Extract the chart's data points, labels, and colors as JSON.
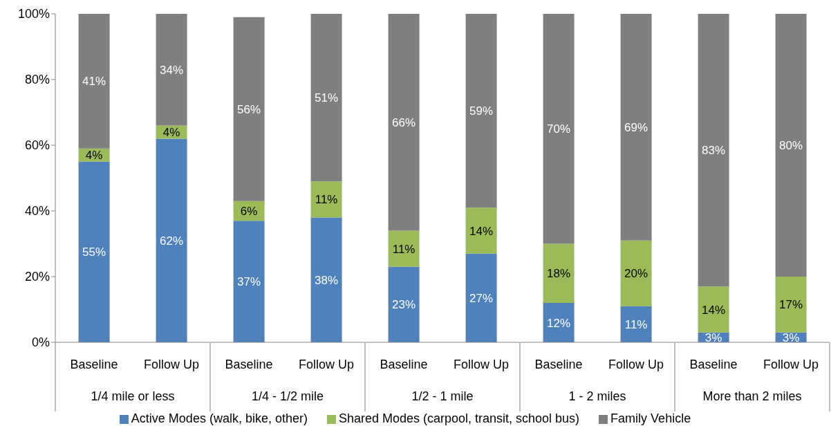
{
  "chart_data": {
    "type": "bar",
    "stacked": true,
    "categories": [
      "Baseline",
      "Follow Up",
      "Baseline",
      "Follow Up",
      "Baseline",
      "Follow Up",
      "Baseline",
      "Follow Up",
      "Baseline",
      "Follow Up"
    ],
    "annotations": [
      "1/4 mile or less",
      "1/4 - 1/2 mile",
      "1/2 - 1 mile",
      "1 - 2 miles",
      "More than 2 miles"
    ],
    "series": [
      {
        "name": "Active Modes (walk, bike, other)",
        "color": "#4f81bd",
        "values": [
          55,
          62,
          37,
          38,
          23,
          27,
          12,
          11,
          3,
          3
        ],
        "value_labels": [
          "55%",
          "62%",
          "37%",
          "38%",
          "23%",
          "27%",
          "12%",
          "11%",
          "3%",
          "3%"
        ]
      },
      {
        "name": "Shared Modes (carpool, transit, school bus)",
        "color": "#9bbb59",
        "values": [
          4,
          4,
          6,
          11,
          11,
          14,
          18,
          20,
          14,
          17
        ],
        "value_labels": [
          "4%",
          "4%",
          "6%",
          "11%",
          "11%",
          "14%",
          "18%",
          "20%",
          "14%",
          "17%"
        ]
      },
      {
        "name": "Family Vehicle",
        "color": "#7f7f7f",
        "values": [
          41,
          34,
          56,
          51,
          66,
          59,
          70,
          69,
          83,
          80
        ],
        "value_labels": [
          "41%",
          "34%",
          "56%",
          "51%",
          "66%",
          "59%",
          "70%",
          "69%",
          "83%",
          "80%"
        ]
      }
    ],
    "ylim": [
      0,
      100
    ],
    "yticks": [
      {
        "value": 0,
        "label": "0%"
      },
      {
        "value": 20,
        "label": "20%"
      },
      {
        "value": 40,
        "label": "40%"
      },
      {
        "value": 60,
        "label": "60%"
      },
      {
        "value": 80,
        "label": "80%"
      },
      {
        "value": 100,
        "label": "100%"
      }
    ],
    "legend": "bottom"
  }
}
